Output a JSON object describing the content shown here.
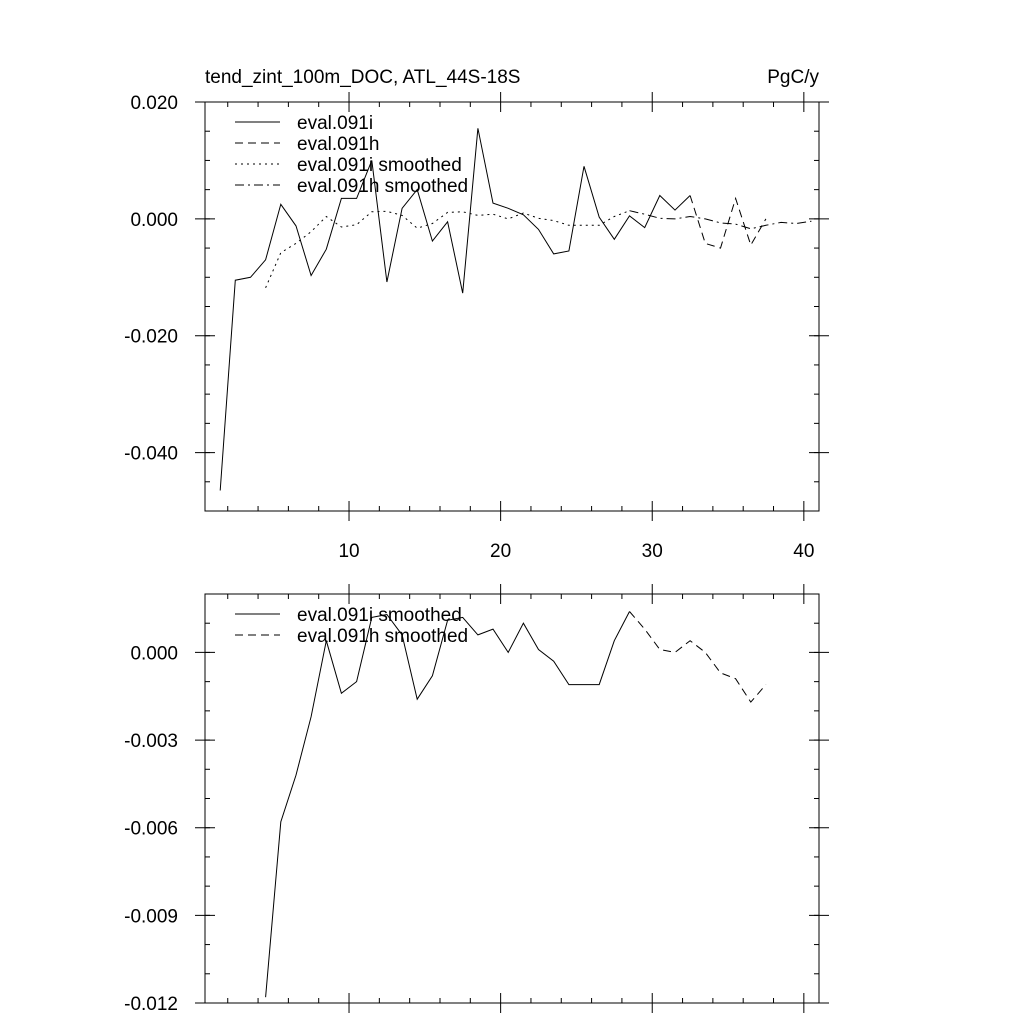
{
  "header": {
    "title": "tend_zint_100m_DOC, ATL_44S-18S",
    "units": "PgC/y"
  },
  "chart_data": [
    {
      "type": "line",
      "title": "tend_zint_100m_DOC, ATL_44S-18S",
      "units_label": "PgC/y",
      "xlim": [
        0.5,
        41
      ],
      "ylim": [
        -0.05,
        0.02
      ],
      "x_ticks": [
        10,
        20,
        30,
        40
      ],
      "x_tick_labels": [
        "10",
        "20",
        "30",
        "40"
      ],
      "y_ticks": [
        0.02,
        0.0,
        -0.02,
        -0.04
      ],
      "y_tick_labels": [
        "0.020",
        "0.000",
        "-0.020",
        "-0.040"
      ],
      "legend": {
        "position": "top-left",
        "entries": [
          "eval.091i",
          "eval.091h",
          "eval.091i smoothed",
          "eval.091h smoothed"
        ]
      },
      "series": [
        {
          "name": "eval.091i",
          "style": "solid",
          "x": [
            1.5,
            2.5,
            3.5,
            4.5,
            5.5,
            6.5,
            7.5,
            8.5,
            9.5,
            10.5,
            11.5,
            12.5,
            13.5,
            14.5,
            15.5,
            16.5,
            17.5,
            18.5,
            19.5,
            20.5,
            21.5,
            22.5,
            23.5,
            24.5,
            25.5,
            26.5,
            27.5,
            28.5,
            29.5,
            30.5,
            31.5,
            32.5
          ],
          "y": [
            -0.0465,
            -0.0105,
            -0.01,
            -0.007,
            0.0025,
            -0.0012,
            -0.0097,
            -0.0052,
            0.0035,
            0.0035,
            0.01,
            -0.0108,
            0.0018,
            0.005,
            -0.0038,
            -0.0005,
            -0.0127,
            0.0155,
            0.0027,
            0.0018,
            0.0007,
            -0.0018,
            -0.006,
            -0.0055,
            0.009,
            0.0003,
            -0.0035,
            0.0005,
            -0.0015,
            0.004,
            0.0015,
            0.004
          ]
        },
        {
          "name": "eval.091h",
          "style": "dashed",
          "x": [
            32.5,
            33.5,
            34.5,
            35.5,
            36.5,
            37.5
          ],
          "y": [
            0.004,
            -0.0042,
            -0.005,
            0.0035,
            -0.0045,
            0.0
          ]
        },
        {
          "name": "eval.091i smoothed",
          "style": "dotted",
          "x": [
            4.5,
            5.5,
            6.5,
            7.5,
            8.5,
            9.5,
            10.5,
            11.5,
            12.5,
            13.5,
            14.5,
            15.5,
            16.5,
            17.5,
            18.5,
            19.5,
            20.5,
            21.5,
            22.5,
            23.5,
            24.5,
            25.5,
            26.5,
            27.5,
            28.5
          ],
          "y": [
            -0.0118,
            -0.0058,
            -0.0042,
            -0.0022,
            0.0004,
            -0.0014,
            -0.001,
            0.0012,
            0.0013,
            0.0006,
            -0.0016,
            -0.0008,
            0.0011,
            0.0012,
            0.0006,
            0.0008,
            0.0,
            0.001,
            0.0001,
            -0.0003,
            -0.0011,
            -0.0011,
            -0.0011,
            0.0004,
            0.0014
          ]
        },
        {
          "name": "eval.091h smoothed",
          "style": "dashdot",
          "x": [
            28.5,
            29.5,
            30.5,
            31.5,
            32.5,
            33.5,
            34.5,
            35.5,
            36.5,
            37.5,
            38.5,
            39.5,
            40.5
          ],
          "y": [
            0.0014,
            0.0008,
            0.0001,
            0.0,
            0.0004,
            0.0,
            -0.0007,
            -0.0009,
            -0.0017,
            -0.0011,
            -0.0006,
            -0.0008,
            -0.0004
          ]
        }
      ]
    },
    {
      "type": "line",
      "xlim": [
        0.5,
        41
      ],
      "ylim": [
        -0.012,
        0.002
      ],
      "x_ticks": [
        10,
        20,
        30,
        40
      ],
      "y_ticks": [
        0.0,
        -0.003,
        -0.006,
        -0.009,
        -0.012
      ],
      "y_tick_labels": [
        "0.000",
        "-0.003",
        "-0.006",
        "-0.009",
        "-0.012"
      ],
      "legend": {
        "position": "top-left",
        "entries": [
          "eval.091i smoothed",
          "eval.091h smoothed"
        ]
      },
      "series": [
        {
          "name": "eval.091i smoothed",
          "style": "solid",
          "x": [
            4.5,
            5.5,
            6.5,
            7.5,
            8.5,
            9.5,
            10.5,
            11.5,
            12.5,
            13.5,
            14.5,
            15.5,
            16.5,
            17.5,
            18.5,
            19.5,
            20.5,
            21.5,
            22.5,
            23.5,
            24.5,
            25.5,
            26.5,
            27.5,
            28.5
          ],
          "y": [
            -0.0118,
            -0.0058,
            -0.0042,
            -0.0022,
            0.0004,
            -0.0014,
            -0.001,
            0.0012,
            0.0013,
            0.0006,
            -0.0016,
            -0.0008,
            0.0011,
            0.0012,
            0.0006,
            0.0008,
            0.0,
            0.001,
            0.0001,
            -0.0003,
            -0.0011,
            -0.0011,
            -0.0011,
            0.0004,
            0.0014
          ]
        },
        {
          "name": "eval.091h smoothed",
          "style": "dashed",
          "x": [
            28.5,
            29.5,
            30.5,
            31.5,
            32.5,
            33.5,
            34.5,
            35.5,
            36.5,
            37.5
          ],
          "y": [
            0.0014,
            0.0008,
            0.0001,
            0.0,
            0.0004,
            0.0,
            -0.0007,
            -0.0009,
            -0.0017,
            -0.0011
          ]
        }
      ]
    }
  ]
}
